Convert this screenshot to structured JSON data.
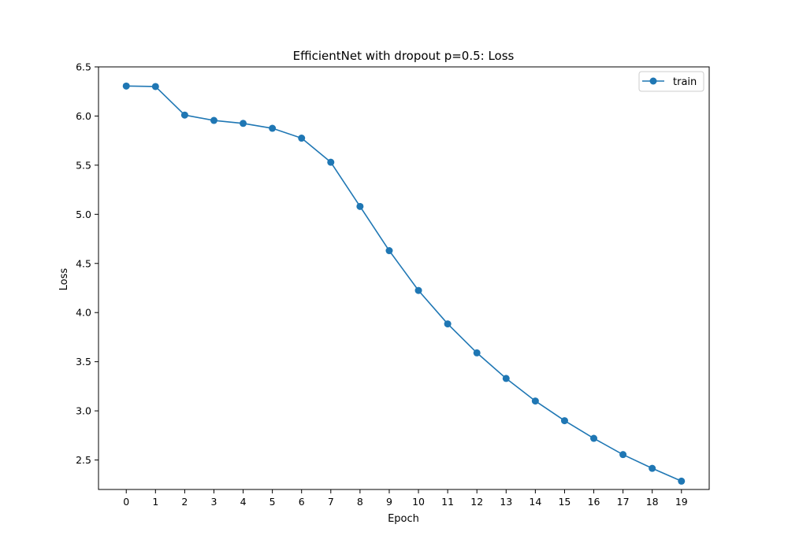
{
  "chart_data": {
    "type": "line",
    "title": "EfficientNet with dropout p=0.5: Loss",
    "xlabel": "Epoch",
    "ylabel": "Loss",
    "x": [
      0,
      1,
      2,
      3,
      4,
      5,
      6,
      7,
      8,
      9,
      10,
      11,
      12,
      13,
      14,
      15,
      16,
      17,
      18,
      19
    ],
    "xticks": [
      "0",
      "1",
      "2",
      "3",
      "4",
      "5",
      "6",
      "7",
      "8",
      "9",
      "10",
      "11",
      "12",
      "13",
      "14",
      "15",
      "16",
      "17",
      "18",
      "19"
    ],
    "yticks": [
      "2.5",
      "3.0",
      "3.5",
      "4.0",
      "4.5",
      "5.0",
      "5.5",
      "6.0",
      "6.5"
    ],
    "xlim": [
      -0.95,
      19.95
    ],
    "ylim": [
      2.2,
      6.5
    ],
    "grid": false,
    "legend_position": "top-right",
    "series": [
      {
        "name": "train",
        "color": "#1f77b4",
        "marker": "circle",
        "values": [
          6.305,
          6.3,
          6.01,
          5.955,
          5.925,
          5.875,
          5.775,
          5.53,
          5.08,
          4.63,
          4.225,
          3.885,
          3.59,
          3.33,
          3.1,
          2.9,
          2.72,
          2.555,
          2.415,
          2.285
        ]
      }
    ]
  }
}
